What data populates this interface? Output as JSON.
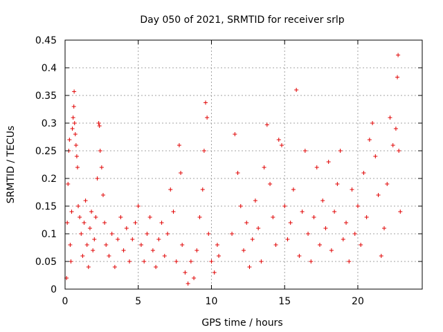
{
  "chart_data": {
    "type": "scatter",
    "title": "Day 050 of 2021, SRMTID for receiver srlp",
    "xlabel": "GPS time / hours",
    "ylabel": "SRMTID / TECUs",
    "xlim": [
      0,
      24.4
    ],
    "ylim": [
      0,
      0.45
    ],
    "xticks": [
      "0",
      "5",
      "10",
      "15",
      "20"
    ],
    "yticks": [
      "0",
      "0.05",
      "0.1",
      "0.15",
      "0.2",
      "0.25",
      "0.3",
      "0.35",
      "0.4",
      "0.45"
    ],
    "xtick_values": [
      0,
      5,
      10,
      15,
      20
    ],
    "ytick_values": [
      0,
      0.05,
      0.1,
      0.15,
      0.2,
      0.25,
      0.3,
      0.35,
      0.4,
      0.45
    ],
    "grid": true,
    "marker": "plus",
    "color": "#e00000",
    "series": [
      {
        "name": "",
        "points": [
          [
            0.1,
            0.02
          ],
          [
            0.15,
            0.12
          ],
          [
            0.2,
            0.19
          ],
          [
            0.25,
            0.25
          ],
          [
            0.3,
            0.27
          ],
          [
            0.35,
            0.08
          ],
          [
            0.4,
            0.05
          ],
          [
            0.45,
            0.14
          ],
          [
            0.5,
            0.29
          ],
          [
            0.55,
            0.31
          ],
          [
            0.6,
            0.33
          ],
          [
            0.62,
            0.357
          ],
          [
            0.65,
            0.3
          ],
          [
            0.7,
            0.28
          ],
          [
            0.75,
            0.26
          ],
          [
            0.8,
            0.24
          ],
          [
            0.85,
            0.22
          ],
          [
            0.9,
            0.15
          ],
          [
            1.0,
            0.13
          ],
          [
            1.1,
            0.1
          ],
          [
            1.2,
            0.06
          ],
          [
            1.3,
            0.12
          ],
          [
            1.4,
            0.16
          ],
          [
            1.5,
            0.08
          ],
          [
            1.6,
            0.04
          ],
          [
            1.7,
            0.11
          ],
          [
            1.8,
            0.14
          ],
          [
            1.9,
            0.07
          ],
          [
            2.0,
            0.09
          ],
          [
            2.1,
            0.13
          ],
          [
            2.2,
            0.2
          ],
          [
            2.3,
            0.3
          ],
          [
            2.35,
            0.295
          ],
          [
            2.4,
            0.25
          ],
          [
            2.5,
            0.22
          ],
          [
            2.6,
            0.17
          ],
          [
            2.7,
            0.12
          ],
          [
            2.8,
            0.08
          ],
          [
            3.0,
            0.06
          ],
          [
            3.2,
            0.1
          ],
          [
            3.4,
            0.04
          ],
          [
            3.6,
            0.09
          ],
          [
            3.8,
            0.13
          ],
          [
            4.0,
            0.07
          ],
          [
            4.2,
            0.11
          ],
          [
            4.4,
            0.05
          ],
          [
            4.6,
            0.09
          ],
          [
            4.8,
            0.12
          ],
          [
            5.0,
            0.15
          ],
          [
            5.2,
            0.08
          ],
          [
            5.4,
            0.05
          ],
          [
            5.6,
            0.1
          ],
          [
            5.8,
            0.13
          ],
          [
            6.0,
            0.07
          ],
          [
            6.2,
            0.04
          ],
          [
            6.4,
            0.09
          ],
          [
            6.6,
            0.12
          ],
          [
            6.8,
            0.06
          ],
          [
            7.0,
            0.1
          ],
          [
            7.2,
            0.18
          ],
          [
            7.4,
            0.14
          ],
          [
            7.6,
            0.05
          ],
          [
            7.8,
            0.26
          ],
          [
            7.9,
            0.21
          ],
          [
            8.0,
            0.08
          ],
          [
            8.2,
            0.03
          ],
          [
            8.4,
            0.01
          ],
          [
            8.6,
            0.05
          ],
          [
            8.8,
            0.02
          ],
          [
            9.0,
            0.07
          ],
          [
            9.2,
            0.13
          ],
          [
            9.4,
            0.18
          ],
          [
            9.5,
            0.25
          ],
          [
            9.6,
            0.337
          ],
          [
            9.7,
            0.31
          ],
          [
            9.8,
            0.1
          ],
          [
            10.0,
            0.05
          ],
          [
            10.2,
            0.03
          ],
          [
            10.4,
            0.08
          ],
          [
            10.5,
            0.06
          ],
          [
            11.4,
            0.1
          ],
          [
            11.6,
            0.28
          ],
          [
            11.8,
            0.21
          ],
          [
            12.0,
            0.15
          ],
          [
            12.2,
            0.07
          ],
          [
            12.4,
            0.12
          ],
          [
            12.6,
            0.04
          ],
          [
            12.8,
            0.09
          ],
          [
            13.0,
            0.16
          ],
          [
            13.2,
            0.11
          ],
          [
            13.4,
            0.05
          ],
          [
            13.6,
            0.22
          ],
          [
            13.8,
            0.297
          ],
          [
            14.0,
            0.19
          ],
          [
            14.2,
            0.13
          ],
          [
            14.4,
            0.08
          ],
          [
            14.6,
            0.27
          ],
          [
            14.8,
            0.26
          ],
          [
            15.0,
            0.15
          ],
          [
            15.2,
            0.09
          ],
          [
            15.4,
            0.12
          ],
          [
            15.6,
            0.18
          ],
          [
            15.8,
            0.36
          ],
          [
            16.0,
            0.06
          ],
          [
            16.2,
            0.14
          ],
          [
            16.4,
            0.25
          ],
          [
            16.6,
            0.1
          ],
          [
            16.8,
            0.05
          ],
          [
            17.0,
            0.13
          ],
          [
            17.2,
            0.22
          ],
          [
            17.4,
            0.08
          ],
          [
            17.6,
            0.16
          ],
          [
            17.8,
            0.11
          ],
          [
            18.0,
            0.23
          ],
          [
            18.2,
            0.07
          ],
          [
            18.4,
            0.14
          ],
          [
            18.6,
            0.19
          ],
          [
            18.8,
            0.25
          ],
          [
            19.0,
            0.09
          ],
          [
            19.2,
            0.12
          ],
          [
            19.4,
            0.05
          ],
          [
            19.6,
            0.18
          ],
          [
            19.8,
            0.1
          ],
          [
            20.0,
            0.15
          ],
          [
            20.2,
            0.08
          ],
          [
            20.4,
            0.21
          ],
          [
            20.6,
            0.13
          ],
          [
            20.8,
            0.27
          ],
          [
            21.0,
            0.3
          ],
          [
            21.2,
            0.24
          ],
          [
            21.4,
            0.17
          ],
          [
            21.6,
            0.06
          ],
          [
            21.8,
            0.11
          ],
          [
            22.0,
            0.19
          ],
          [
            22.2,
            0.31
          ],
          [
            22.4,
            0.26
          ],
          [
            22.6,
            0.29
          ],
          [
            22.7,
            0.383
          ],
          [
            22.75,
            0.423
          ],
          [
            22.8,
            0.25
          ],
          [
            22.9,
            0.14
          ]
        ]
      }
    ]
  }
}
